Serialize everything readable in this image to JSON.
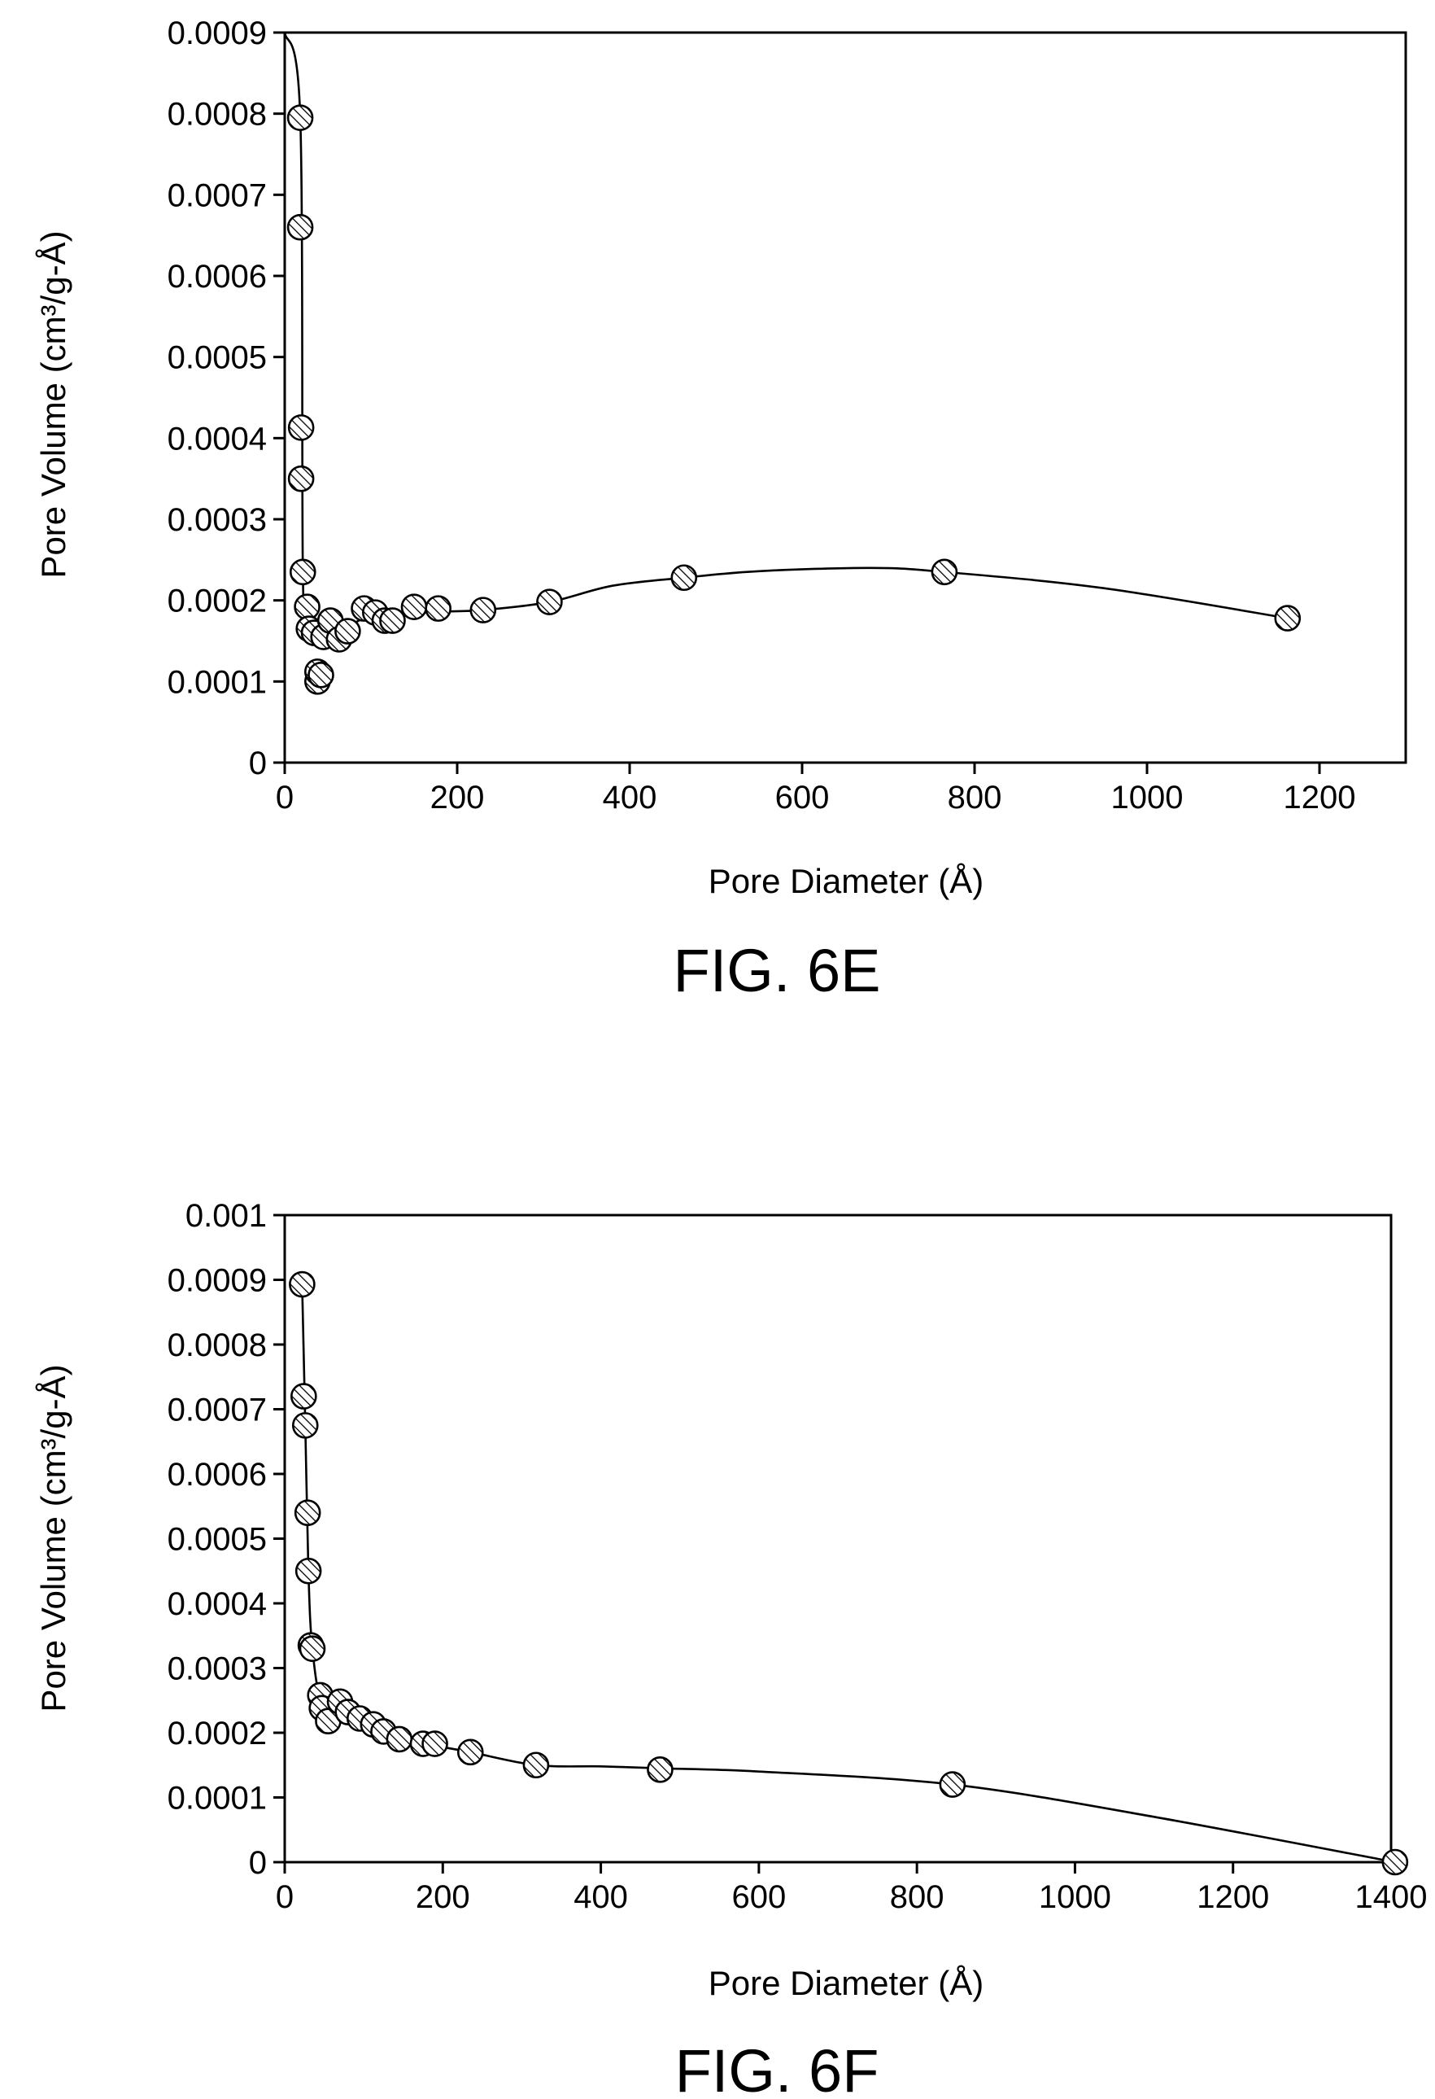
{
  "chart_data": [
    {
      "type": "scatter",
      "caption": "FIG. 6E",
      "xlabel": "Pore Diameter (Å)",
      "ylabel": "Pore Volume (cm³/g-Å)",
      "xlim": [
        0,
        1300
      ],
      "ylim": [
        0,
        0.0009
      ],
      "xticks": [
        "0",
        "200",
        "400",
        "600",
        "800",
        "1000",
        "1200"
      ],
      "yticks": [
        "0",
        "0.0001",
        "0.0002",
        "0.0003",
        "0.0004",
        "0.0005",
        "0.0006",
        "0.0007",
        "0.0008",
        "0.0009"
      ],
      "grid": false,
      "marker": "hatched circle",
      "series": [
        {
          "x": [
            18,
            18,
            19,
            19,
            21,
            26,
            28,
            34,
            38,
            38,
            42,
            45,
            53,
            63,
            73,
            92,
            105,
            116,
            125,
            150,
            178,
            230,
            307,
            463,
            765,
            1163
          ],
          "y": [
            0.000795,
            0.00066,
            0.000413,
            0.00035,
            0.000235,
            0.000192,
            0.000165,
            0.00016,
            0.0001,
            0.000112,
            0.000108,
            0.000155,
            0.000175,
            0.000152,
            0.000162,
            0.00019,
            0.000185,
            0.000175,
            0.000175,
            0.000192,
            0.00019,
            0.000188,
            0.000198,
            0.000228,
            0.000235,
            0.000178
          ]
        }
      ],
      "curve": {
        "x": [
          0,
          18,
          21,
          26,
          34,
          45,
          63,
          92,
          125,
          178,
          230,
          307,
          380,
          463,
          550,
          680,
          765,
          950,
          1163
        ],
        "y": [
          0.0009,
          0.000795,
          0.000235,
          0.00019,
          0.000165,
          0.000155,
          0.00016,
          0.000178,
          0.000182,
          0.000186,
          0.000188,
          0.000198,
          0.000218,
          0.000228,
          0.000236,
          0.00024,
          0.000235,
          0.000215,
          0.000178
        ]
      }
    },
    {
      "type": "scatter",
      "caption": "FIG. 6F",
      "xlabel": "Pore Diameter (Å)",
      "ylabel": "Pore Volume (cm³/g-Å)",
      "xlim": [
        0,
        1400
      ],
      "ylim": [
        0,
        0.001
      ],
      "xticks": [
        "0",
        "200",
        "400",
        "600",
        "800",
        "1000",
        "1200",
        "1400"
      ],
      "yticks": [
        "0",
        "0.0001",
        "0.0002",
        "0.0003",
        "0.0004",
        "0.0005",
        "0.0006",
        "0.0007",
        "0.0008",
        "0.0009",
        "0.001"
      ],
      "grid": false,
      "marker": "hatched circle",
      "series": [
        {
          "x": [
            22,
            24,
            26,
            29,
            30,
            33,
            35,
            45,
            47,
            55,
            70,
            80,
            95,
            112,
            125,
            145,
            175,
            190,
            235,
            318,
            475,
            845,
            1405
          ],
          "y": [
            0.000893,
            0.00072,
            0.000675,
            0.00054,
            0.00045,
            0.000335,
            0.00033,
            0.000258,
            0.000238,
            0.000218,
            0.000248,
            0.000232,
            0.000222,
            0.000213,
            0.000202,
            0.00019,
            0.000183,
            0.000183,
            0.00017,
            0.00015,
            0.000143,
            0.00012,
            0.0
          ]
        }
      ],
      "curve": {
        "x": [
          22,
          26,
          30,
          35,
          47,
          70,
          95,
          145,
          190,
          235,
          318,
          400,
          475,
          600,
          845,
          1100,
          1405
        ],
        "y": [
          0.000893,
          0.000675,
          0.00045,
          0.00033,
          0.000245,
          0.000235,
          0.00022,
          0.00019,
          0.00018,
          0.00017,
          0.00015,
          0.000148,
          0.000145,
          0.00014,
          0.00012,
          7e-05,
          0.0
        ]
      }
    }
  ]
}
